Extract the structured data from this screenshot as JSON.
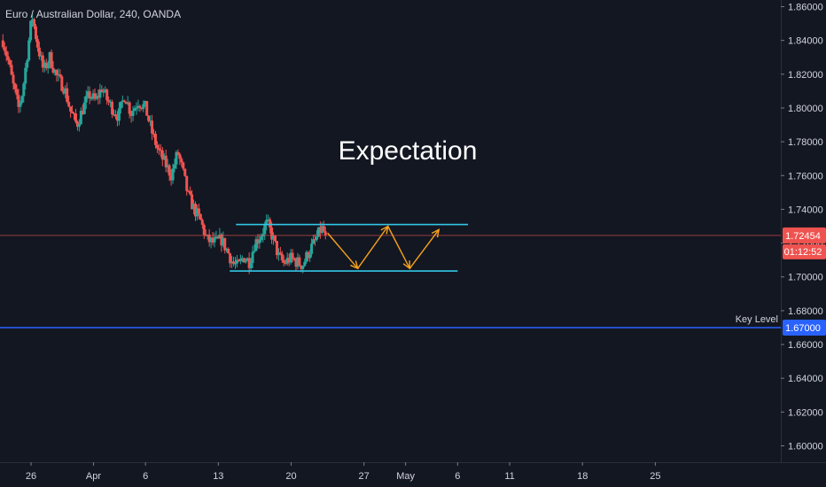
{
  "header": {
    "symbol_title": "Euro / Australian Dollar, 240, OANDA"
  },
  "chart_data": {
    "type": "candlestick",
    "symbol": "Euro / Australian Dollar",
    "interval": "240",
    "source": "OANDA",
    "ylim": [
      1.59,
      1.865
    ],
    "y_ticks": [
      "1.86000",
      "1.84000",
      "1.82000",
      "1.80000",
      "1.78000",
      "1.76000",
      "1.74000",
      "1.72000",
      "1.70000",
      "1.68000",
      "1.66000",
      "1.64000",
      "1.62000",
      "1.60000"
    ],
    "x_ticks": [
      {
        "label": "26",
        "day": 0
      },
      {
        "label": "Apr",
        "day": 6
      },
      {
        "label": "6",
        "day": 11
      },
      {
        "label": "13",
        "day": 18
      },
      {
        "label": "20",
        "day": 25
      },
      {
        "label": "27",
        "day": 32
      },
      {
        "label": "May",
        "day": 36
      },
      {
        "label": "6",
        "day": 41
      },
      {
        "label": "11",
        "day": 46
      },
      {
        "label": "18",
        "day": 53
      },
      {
        "label": "25",
        "day": 60
      }
    ],
    "price_path": [
      [
        -2.7,
        1.84
      ],
      [
        -2.2,
        1.828
      ],
      [
        -1.7,
        1.813
      ],
      [
        -1.2,
        1.8
      ],
      [
        -0.8,
        1.81
      ],
      [
        -0.3,
        1.835
      ],
      [
        0.1,
        1.855
      ],
      [
        0.6,
        1.838
      ],
      [
        1.2,
        1.822
      ],
      [
        1.8,
        1.83
      ],
      [
        2.5,
        1.818
      ],
      [
        3.2,
        1.812
      ],
      [
        3.8,
        1.798
      ],
      [
        4.4,
        1.79
      ],
      [
        5.0,
        1.8
      ],
      [
        5.6,
        1.808
      ],
      [
        6.2,
        1.804
      ],
      [
        6.8,
        1.812
      ],
      [
        7.3,
        1.805
      ],
      [
        7.8,
        1.8
      ],
      [
        8.4,
        1.795
      ],
      [
        9.0,
        1.808
      ],
      [
        9.6,
        1.797
      ],
      [
        10.3,
        1.804
      ],
      [
        11.0,
        1.8
      ],
      [
        11.6,
        1.786
      ],
      [
        12.2,
        1.775
      ],
      [
        12.8,
        1.768
      ],
      [
        13.5,
        1.76
      ],
      [
        14.1,
        1.774
      ],
      [
        14.6,
        1.762
      ],
      [
        15.1,
        1.748
      ],
      [
        15.7,
        1.74
      ],
      [
        16.3,
        1.733
      ],
      [
        16.9,
        1.722
      ],
      [
        17.6,
        1.72
      ],
      [
        18.3,
        1.722
      ],
      [
        18.9,
        1.715
      ],
      [
        19.4,
        1.708
      ],
      [
        19.9,
        1.706
      ],
      [
        20.4,
        1.712
      ],
      [
        21.0,
        1.709
      ],
      [
        21.5,
        1.72
      ],
      [
        22.1,
        1.725
      ],
      [
        22.7,
        1.732
      ],
      [
        23.3,
        1.722
      ],
      [
        23.8,
        1.712
      ],
      [
        24.3,
        1.708
      ],
      [
        24.9,
        1.711
      ],
      [
        25.5,
        1.709
      ],
      [
        26.1,
        1.707
      ],
      [
        26.7,
        1.715
      ],
      [
        27.3,
        1.721
      ],
      [
        27.9,
        1.729
      ],
      [
        28.3,
        1.725
      ]
    ],
    "last_price": "1.72454",
    "countdown": "01:12:52",
    "key_level": {
      "label": "Key Level",
      "price": "1.67000",
      "value": 1.67
    },
    "channel": {
      "resistance": {
        "value": 1.731,
        "day_start": 19.7,
        "day_end": 42.0
      },
      "support": {
        "value": 1.7035,
        "day_start": 19.1,
        "day_end": 41.0
      }
    },
    "projection": [
      [
        28.5,
        1.726
      ],
      [
        31.4,
        1.705
      ],
      [
        34.3,
        1.73
      ],
      [
        36.4,
        1.705
      ],
      [
        39.2,
        1.728
      ]
    ],
    "annotation": "Expectation",
    "colors": {
      "background": "#131722",
      "up": "#26a69a",
      "down": "#ef5350",
      "channel": "#33c6e6",
      "projection": "#f7a21b",
      "key_level": "#2962ff",
      "last_price": "#ef5350",
      "text": "#d1d4dc"
    }
  }
}
